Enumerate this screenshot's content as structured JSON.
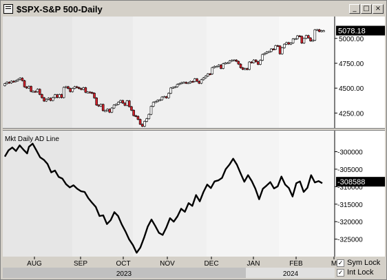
{
  "window": {
    "title": "$SPX-S&P 500-Daily",
    "buttons": {
      "minimize": "_",
      "maximize": "□",
      "close": "×"
    },
    "icons": {
      "system": "window-menu-icon"
    }
  },
  "controls": {
    "sym_lock": {
      "label": "Sym Lock",
      "checked": true
    },
    "int_lock": {
      "label": "Int Lock",
      "checked": true
    }
  },
  "chart_data": [
    {
      "type": "candlestick",
      "title": "$SPX-S&P 500-Daily",
      "ylim": [
        4100,
        5220
      ],
      "yticks": [
        4250,
        4500,
        4750,
        5000
      ],
      "ytick_labels": [
        "4250.00",
        "4500.00",
        "4750.00",
        "5000.00"
      ],
      "last_value_label": "5078.18",
      "last_value": 5078.18,
      "up_color": "#ffffff",
      "down_color": "#d0202a",
      "grid": false,
      "x_months": [
        "AUG",
        "SEP",
        "OCT",
        "NOV",
        "DEC",
        "JAN",
        "FEB",
        "M"
      ],
      "series": [
        {
          "o": 4525,
          "c": 4545
        },
        {
          "o": 4545,
          "c": 4560
        },
        {
          "o": 4560,
          "c": 4552
        },
        {
          "o": 4552,
          "c": 4570
        },
        {
          "o": 4570,
          "c": 4565
        },
        {
          "o": 4565,
          "c": 4575
        },
        {
          "o": 4575,
          "c": 4588
        },
        {
          "o": 4588,
          "c": 4601
        },
        {
          "o": 4601,
          "c": 4576
        },
        {
          "o": 4576,
          "c": 4513
        },
        {
          "o": 4513,
          "c": 4501
        },
        {
          "o": 4501,
          "c": 4518
        },
        {
          "o": 4518,
          "c": 4467
        },
        {
          "o": 4467,
          "c": 4468
        },
        {
          "o": 4468,
          "c": 4464
        },
        {
          "o": 4464,
          "c": 4489
        },
        {
          "o": 4489,
          "c": 4437
        },
        {
          "o": 4437,
          "c": 4404
        },
        {
          "o": 4404,
          "c": 4370
        },
        {
          "o": 4370,
          "c": 4388
        },
        {
          "o": 4388,
          "c": 4399
        },
        {
          "o": 4399,
          "c": 4376
        },
        {
          "o": 4376,
          "c": 4405
        },
        {
          "o": 4405,
          "c": 4434
        },
        {
          "o": 4434,
          "c": 4406
        },
        {
          "o": 4406,
          "c": 4436
        },
        {
          "o": 4436,
          "c": 4405
        },
        {
          "o": 4405,
          "c": 4508
        },
        {
          "o": 4508,
          "c": 4515
        },
        {
          "o": 4515,
          "c": 4497
        },
        {
          "o": 4497,
          "c": 4465
        },
        {
          "o": 4465,
          "c": 4497
        },
        {
          "o": 4497,
          "c": 4515
        },
        {
          "o": 4515,
          "c": 4507
        },
        {
          "o": 4507,
          "c": 4496
        },
        {
          "o": 4496,
          "c": 4487
        },
        {
          "o": 4487,
          "c": 4505
        },
        {
          "o": 4505,
          "c": 4458
        },
        {
          "o": 4458,
          "c": 4461
        },
        {
          "o": 4461,
          "c": 4457
        },
        {
          "o": 4457,
          "c": 4450
        },
        {
          "o": 4450,
          "c": 4402
        },
        {
          "o": 4402,
          "c": 4330
        },
        {
          "o": 4330,
          "c": 4320
        },
        {
          "o": 4320,
          "c": 4337
        },
        {
          "o": 4337,
          "c": 4274
        },
        {
          "o": 4274,
          "c": 4274
        },
        {
          "o": 4274,
          "c": 4288
        },
        {
          "o": 4288,
          "c": 4258
        },
        {
          "o": 4258,
          "c": 4300
        },
        {
          "o": 4300,
          "c": 4330
        },
        {
          "o": 4330,
          "c": 4337
        },
        {
          "o": 4337,
          "c": 4358
        },
        {
          "o": 4358,
          "c": 4376
        },
        {
          "o": 4376,
          "c": 4350
        },
        {
          "o": 4350,
          "c": 4327
        },
        {
          "o": 4327,
          "c": 4373
        },
        {
          "o": 4373,
          "c": 4314
        },
        {
          "o": 4314,
          "c": 4278
        },
        {
          "o": 4278,
          "c": 4224
        },
        {
          "o": 4224,
          "c": 4217
        },
        {
          "o": 4217,
          "c": 4186
        },
        {
          "o": 4186,
          "c": 4137
        },
        {
          "o": 4137,
          "c": 4117
        },
        {
          "o": 4117,
          "c": 4166
        },
        {
          "o": 4166,
          "c": 4193
        },
        {
          "o": 4193,
          "c": 4237
        },
        {
          "o": 4237,
          "c": 4317
        },
        {
          "o": 4317,
          "c": 4358
        },
        {
          "o": 4358,
          "c": 4365
        },
        {
          "o": 4365,
          "c": 4378
        },
        {
          "o": 4378,
          "c": 4383
        },
        {
          "o": 4383,
          "c": 4411
        },
        {
          "o": 4411,
          "c": 4415
        },
        {
          "o": 4415,
          "c": 4403
        },
        {
          "o": 4403,
          "c": 4448
        },
        {
          "o": 4448,
          "c": 4502
        },
        {
          "o": 4502,
          "c": 4508
        },
        {
          "o": 4508,
          "c": 4514
        },
        {
          "o": 4514,
          "c": 4538
        },
        {
          "o": 4538,
          "c": 4547
        },
        {
          "o": 4547,
          "c": 4556
        },
        {
          "o": 4556,
          "c": 4559
        },
        {
          "o": 4559,
          "c": 4550
        },
        {
          "o": 4550,
          "c": 4554
        },
        {
          "o": 4554,
          "c": 4568
        },
        {
          "o": 4568,
          "c": 4567
        },
        {
          "o": 4567,
          "c": 4594
        },
        {
          "o": 4594,
          "c": 4569
        },
        {
          "o": 4569,
          "c": 4549
        },
        {
          "o": 4549,
          "c": 4585
        },
        {
          "o": 4585,
          "c": 4604
        },
        {
          "o": 4604,
          "c": 4622
        },
        {
          "o": 4622,
          "c": 4644
        },
        {
          "o": 4644,
          "c": 4643
        },
        {
          "o": 4643,
          "c": 4707
        },
        {
          "o": 4707,
          "c": 4719
        },
        {
          "o": 4719,
          "c": 4719
        },
        {
          "o": 4719,
          "c": 4733
        },
        {
          "o": 4733,
          "c": 4698
        },
        {
          "o": 4698,
          "c": 4746
        },
        {
          "o": 4746,
          "c": 4754
        },
        {
          "o": 4754,
          "c": 4755
        },
        {
          "o": 4755,
          "c": 4774
        },
        {
          "o": 4774,
          "c": 4781
        },
        {
          "o": 4781,
          "c": 4783
        },
        {
          "o": 4783,
          "c": 4770
        },
        {
          "o": 4770,
          "c": 4742
        },
        {
          "o": 4742,
          "c": 4705
        },
        {
          "o": 4705,
          "c": 4689
        },
        {
          "o": 4689,
          "c": 4697
        },
        {
          "o": 4697,
          "c": 4688
        },
        {
          "o": 4688,
          "c": 4763
        },
        {
          "o": 4763,
          "c": 4756
        },
        {
          "o": 4756,
          "c": 4783
        },
        {
          "o": 4783,
          "c": 4766
        },
        {
          "o": 4766,
          "c": 4739
        },
        {
          "o": 4739,
          "c": 4780
        },
        {
          "o": 4780,
          "c": 4839
        },
        {
          "o": 4839,
          "c": 4850
        },
        {
          "o": 4850,
          "c": 4864
        },
        {
          "o": 4864,
          "c": 4868
        },
        {
          "o": 4868,
          "c": 4894
        },
        {
          "o": 4894,
          "c": 4890
        },
        {
          "o": 4890,
          "c": 4928
        },
        {
          "o": 4928,
          "c": 4924
        },
        {
          "o": 4924,
          "c": 4845
        },
        {
          "o": 4845,
          "c": 4906
        },
        {
          "o": 4906,
          "c": 4942
        },
        {
          "o": 4942,
          "c": 4958
        },
        {
          "o": 4958,
          "c": 4942
        },
        {
          "o": 4942,
          "c": 4954
        },
        {
          "o": 4954,
          "c": 4995
        },
        {
          "o": 4995,
          "c": 4997
        },
        {
          "o": 4997,
          "c": 5026
        },
        {
          "o": 5026,
          "c": 5021
        },
        {
          "o": 5021,
          "c": 4953
        },
        {
          "o": 4953,
          "c": 5000
        },
        {
          "o": 5000,
          "c": 5029
        },
        {
          "o": 5029,
          "c": 5005
        },
        {
          "o": 5005,
          "c": 4975
        },
        {
          "o": 4975,
          "c": 4981
        },
        {
          "o": 4981,
          "c": 5087
        },
        {
          "o": 5087,
          "c": 5088
        },
        {
          "o": 5088,
          "c": 5069
        },
        {
          "o": 5069,
          "c": 5078
        },
        {
          "o": 5078,
          "c": 5078
        }
      ]
    },
    {
      "type": "line",
      "title": "Mkt Daily AD Line",
      "ylim": [
        -330000,
        -294000
      ],
      "yticks": [
        -300000,
        -305000,
        -310000,
        -315000,
        -320000,
        -325000
      ],
      "ytick_labels": [
        "-300000",
        "-305000",
        "-310000",
        "-315000",
        "-320000",
        "-325000"
      ],
      "last_value_label": "-308588",
      "last_value": -308588,
      "line_color": "#000000",
      "grid": false,
      "x_months": [
        "AUG",
        "SEP",
        "OCT",
        "NOV",
        "DEC",
        "JAN",
        "FEB",
        "M"
      ],
      "years": [
        "2023",
        "2024"
      ],
      "series": [
        {
          "x": 0,
          "y": -301400
        },
        {
          "x": 2,
          "y": -299600
        },
        {
          "x": 4,
          "y": -298800
        },
        {
          "x": 6,
          "y": -299800
        },
        {
          "x": 8,
          "y": -298200
        },
        {
          "x": 10,
          "y": -299400
        },
        {
          "x": 12,
          "y": -300500
        },
        {
          "x": 13,
          "y": -298600
        },
        {
          "x": 15,
          "y": -297700
        },
        {
          "x": 17,
          "y": -299600
        },
        {
          "x": 19,
          "y": -301600
        },
        {
          "x": 21,
          "y": -302300
        },
        {
          "x": 23,
          "y": -303500
        },
        {
          "x": 25,
          "y": -305900
        },
        {
          "x": 27,
          "y": -305400
        },
        {
          "x": 29,
          "y": -307200
        },
        {
          "x": 31,
          "y": -307700
        },
        {
          "x": 33,
          "y": -309300
        },
        {
          "x": 35,
          "y": -310200
        },
        {
          "x": 37,
          "y": -309600
        },
        {
          "x": 39,
          "y": -310600
        },
        {
          "x": 41,
          "y": -311300
        },
        {
          "x": 43,
          "y": -311500
        },
        {
          "x": 45,
          "y": -313300
        },
        {
          "x": 47,
          "y": -314600
        },
        {
          "x": 49,
          "y": -315800
        },
        {
          "x": 51,
          "y": -318400
        },
        {
          "x": 53,
          "y": -318200
        },
        {
          "x": 55,
          "y": -320700
        },
        {
          "x": 57,
          "y": -319600
        },
        {
          "x": 59,
          "y": -317300
        },
        {
          "x": 61,
          "y": -318400
        },
        {
          "x": 63,
          "y": -320800
        },
        {
          "x": 65,
          "y": -322800
        },
        {
          "x": 67,
          "y": -325100
        },
        {
          "x": 69,
          "y": -326700
        },
        {
          "x": 71,
          "y": -328900
        },
        {
          "x": 73,
          "y": -327400
        },
        {
          "x": 75,
          "y": -324600
        },
        {
          "x": 77,
          "y": -321400
        },
        {
          "x": 79,
          "y": -319400
        },
        {
          "x": 81,
          "y": -321200
        },
        {
          "x": 83,
          "y": -323200
        },
        {
          "x": 85,
          "y": -323800
        },
        {
          "x": 87,
          "y": -321700
        },
        {
          "x": 89,
          "y": -319000
        },
        {
          "x": 91,
          "y": -320000
        },
        {
          "x": 93,
          "y": -318500
        },
        {
          "x": 95,
          "y": -316300
        },
        {
          "x": 97,
          "y": -317200
        },
        {
          "x": 99,
          "y": -314700
        },
        {
          "x": 101,
          "y": -315500
        },
        {
          "x": 103,
          "y": -312400
        },
        {
          "x": 105,
          "y": -314200
        },
        {
          "x": 107,
          "y": -311500
        },
        {
          "x": 109,
          "y": -309400
        },
        {
          "x": 111,
          "y": -310400
        },
        {
          "x": 113,
          "y": -308500
        },
        {
          "x": 115,
          "y": -308200
        },
        {
          "x": 117,
          "y": -307500
        },
        {
          "x": 119,
          "y": -305000
        },
        {
          "x": 121,
          "y": -303700
        },
        {
          "x": 123,
          "y": -302000
        },
        {
          "x": 125,
          "y": -303700
        },
        {
          "x": 127,
          "y": -306200
        },
        {
          "x": 129,
          "y": -308600
        },
        {
          "x": 131,
          "y": -306700
        },
        {
          "x": 133,
          "y": -308400
        },
        {
          "x": 135,
          "y": -310600
        },
        {
          "x": 137,
          "y": -313600
        },
        {
          "x": 139,
          "y": -310600
        },
        {
          "x": 141,
          "y": -309700
        },
        {
          "x": 143,
          "y": -308700
        },
        {
          "x": 145,
          "y": -310500
        },
        {
          "x": 147,
          "y": -309900
        },
        {
          "x": 149,
          "y": -307100
        },
        {
          "x": 151,
          "y": -309400
        },
        {
          "x": 153,
          "y": -310400
        },
        {
          "x": 155,
          "y": -312800
        },
        {
          "x": 157,
          "y": -309000
        },
        {
          "x": 159,
          "y": -308500
        },
        {
          "x": 161,
          "y": -311500
        },
        {
          "x": 163,
          "y": -310300
        },
        {
          "x": 165,
          "y": -306700
        },
        {
          "x": 167,
          "y": -308800
        },
        {
          "x": 169,
          "y": -308400
        },
        {
          "x": 171,
          "y": -309000
        }
      ]
    }
  ]
}
